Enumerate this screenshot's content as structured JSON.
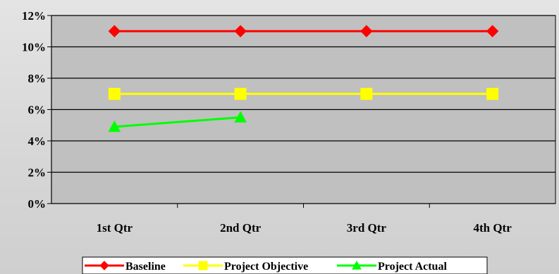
{
  "chart_data": {
    "type": "line",
    "categories": [
      "1st Qtr",
      "2nd Qtr",
      "3rd Qtr",
      "4th Qtr"
    ],
    "ylim": [
      0,
      12
    ],
    "yticks": [
      0,
      2,
      4,
      6,
      8,
      10,
      12
    ],
    "ytick_suffix": "%",
    "grid": true,
    "legend_position": "bottom",
    "plot_background": "#c0c0c0",
    "series": [
      {
        "name": "Baseline",
        "values": [
          11,
          11,
          11,
          11
        ],
        "color": "#ff0000",
        "marker": "diamond"
      },
      {
        "name": "Project Objective",
        "values": [
          7,
          7,
          7,
          7
        ],
        "color": "#ffff00",
        "marker": "square"
      },
      {
        "name": "Project Actual",
        "values": [
          4.9,
          5.5,
          null,
          null
        ],
        "color": "#00ff00",
        "marker": "triangle"
      }
    ]
  }
}
